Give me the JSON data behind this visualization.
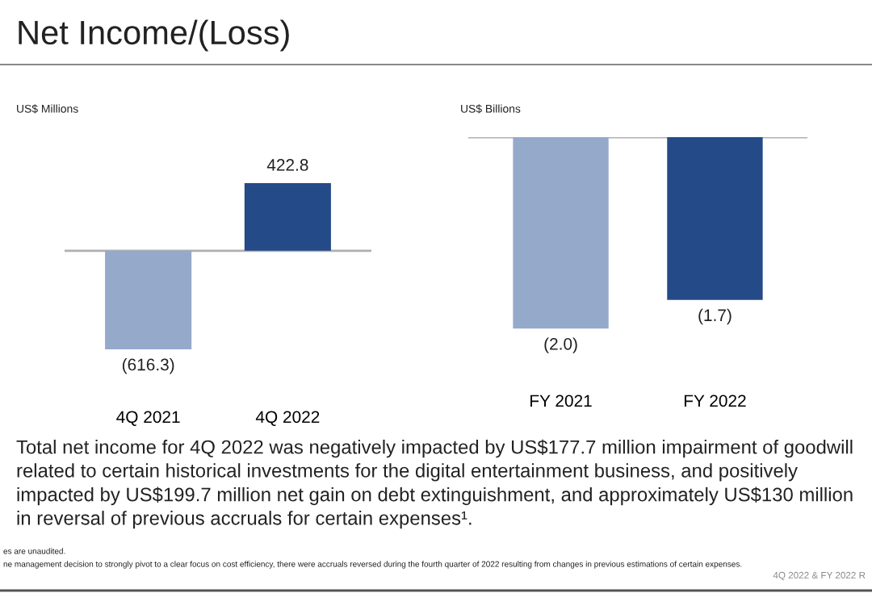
{
  "chart_data": [
    {
      "type": "bar",
      "title": "Net Income/(Loss)",
      "ylabel": "US$ Millions",
      "categories": [
        "4Q 2021",
        "4Q 2022"
      ],
      "values": [
        -616.3,
        422.8
      ],
      "colors": [
        "#95a9cb",
        "#244a87"
      ],
      "value_labels": [
        "(616.3)",
        "422.8"
      ],
      "ref_lines": [
        {
          "axis": "y",
          "value": 0,
          "color": "#b0b0b0"
        }
      ],
      "grid": false,
      "annotations": [
        "Total net income for 4Q 2022 was negatively impacted by US$177.7 million impairment of goodwill related to certain historical investments for the digital entertainment business, and positively impacted by US$199.7 million net gain on debt extinguishment, and approximately US$130 million in reversal of previous accruals for certain expenses¹.",
        "es are unaudited.",
        "ne management decision to strongly pivot to a clear focus on cost efficiency, there were accruals reversed during the fourth quarter of 2022 resulting from changes in previous estimations of certain expenses.",
        "4Q 2022 & FY 2022 R"
      ]
    },
    {
      "type": "bar",
      "ylabel": "US$ Billions",
      "categories": [
        "FY 2021",
        "FY 2022"
      ],
      "values": [
        -2.0,
        -1.7
      ],
      "colors": [
        "#95a9cb",
        "#244a87"
      ],
      "value_labels": [
        "(2.0)",
        "(1.7)"
      ],
      "ref_lines": [
        {
          "axis": "y",
          "value": 0,
          "color": "#b0b0b0"
        }
      ],
      "grid": false
    }
  ]
}
